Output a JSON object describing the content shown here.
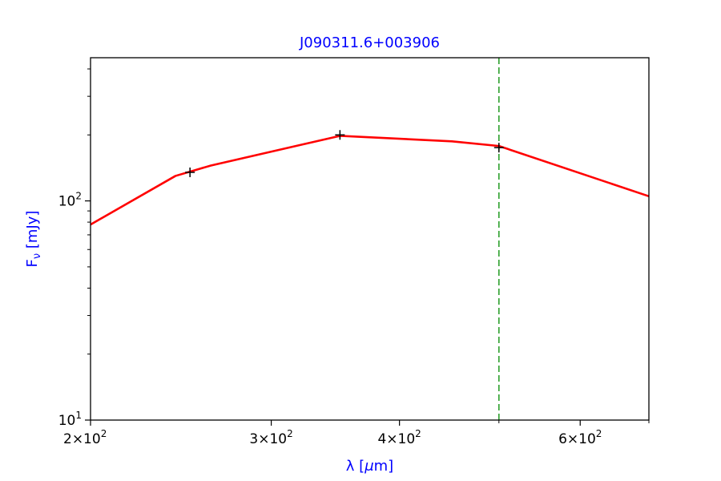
{
  "chart_data": {
    "type": "line",
    "title": "J090311.6+003906",
    "xlabel": "λ [μm]",
    "ylabel": "F<sub>ν</sub> [mJy]",
    "xlabel_parts": {
      "main": "λ [",
      "unit": "μ",
      "end": "m]"
    },
    "ylabel_parts": {
      "main": "F",
      "sub": "ν",
      "end": " [mJy]"
    },
    "xscale": "log",
    "yscale": "log",
    "xlim": [
      200,
      700
    ],
    "ylim": [
      10,
      450
    ],
    "grid": false,
    "x_major_ticks": [
      {
        "value": 200,
        "base": "2",
        "exp": "2"
      },
      {
        "value": 300,
        "base": "3",
        "exp": "2"
      },
      {
        "value": 400,
        "base": "4",
        "exp": "2"
      },
      {
        "value": 600,
        "base": "6",
        "exp": "2"
      }
    ],
    "x_minor_ticks": [
      500,
      700
    ],
    "y_major_ticks": [
      {
        "value": 10,
        "base": "10",
        "exp": "1"
      },
      {
        "value": 100,
        "base": "10",
        "exp": "2"
      }
    ],
    "y_minor_ticks": [
      20,
      30,
      40,
      50,
      60,
      70,
      80,
      90,
      200,
      300,
      400
    ],
    "series": [
      {
        "style": "line",
        "color": "#ff0000",
        "x": [
          200,
          242,
          262,
          350,
          450,
          500,
          700
        ],
        "y": [
          78,
          130,
          145,
          198,
          187,
          178,
          105
        ]
      }
    ],
    "points": {
      "marker": "+",
      "color": "#000000",
      "x": [
        250,
        350,
        500
      ],
      "y": [
        135,
        200,
        175
      ]
    },
    "vline": {
      "x": 500,
      "color": "#2ca02c",
      "style": "dashed"
    }
  }
}
